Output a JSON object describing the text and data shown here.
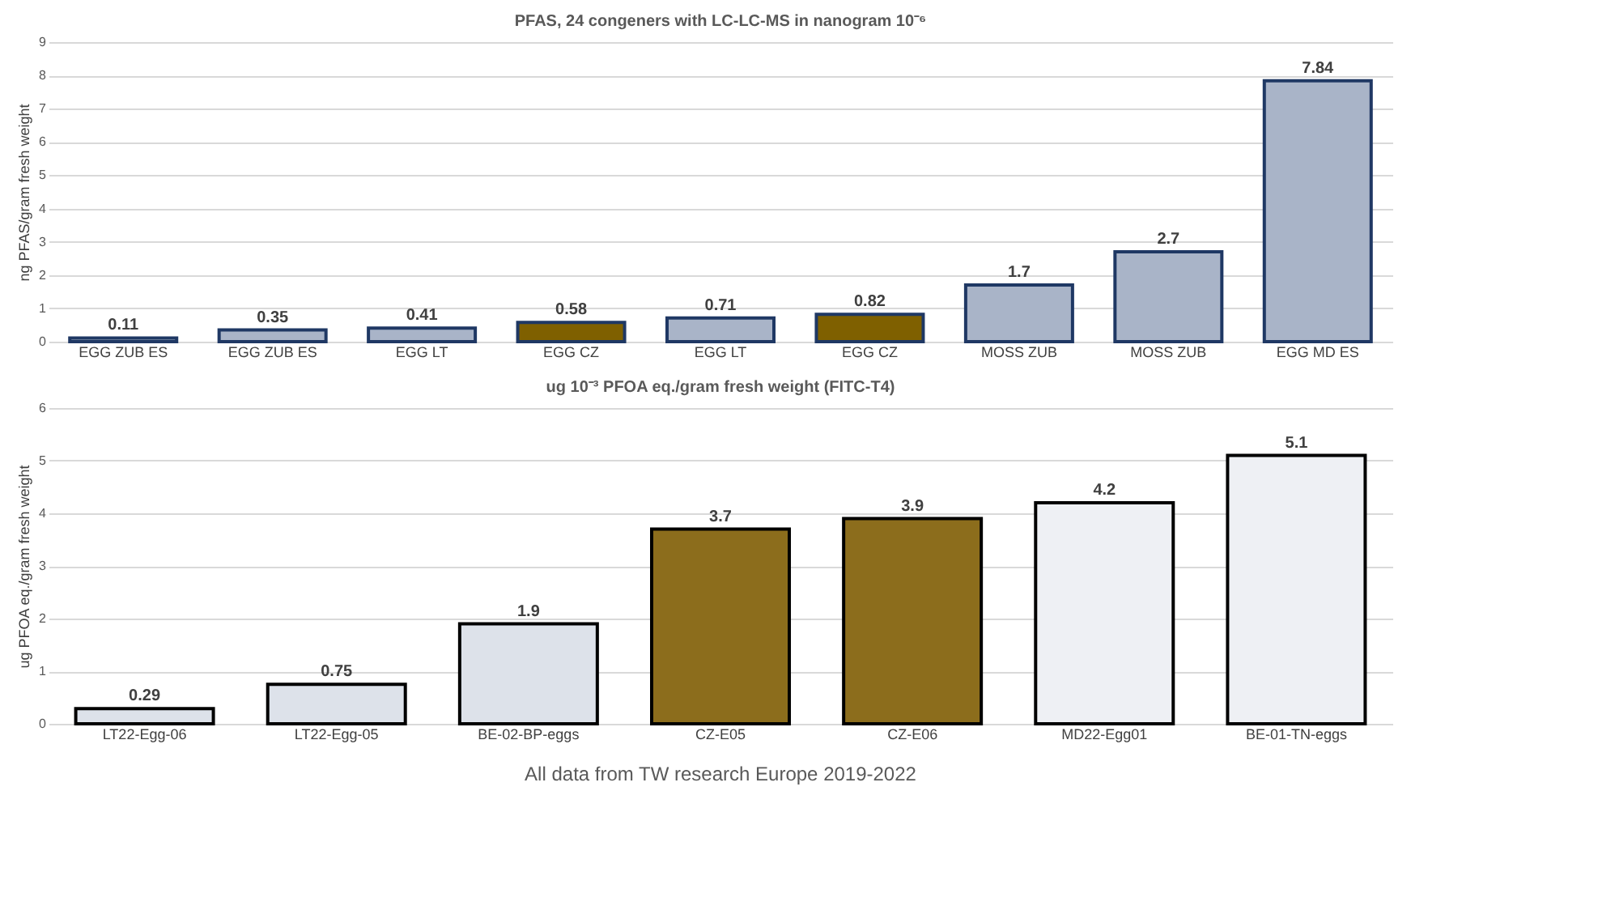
{
  "chart_data": [
    {
      "type": "bar",
      "title": "PFAS, 24 congeners with LC-LC-MS in nanogram 10⁻⁶",
      "ylabel": "ng PFAS/gram fresh weight",
      "categories": [
        "EGG ZUB ES",
        "EGG ZUB ES",
        "EGG LT",
        "EGG CZ",
        "EGG LT",
        "EGG CZ",
        "MOSS ZUB",
        "MOSS ZUB",
        "EGG MD ES"
      ],
      "values": [
        0.11,
        0.35,
        0.41,
        0.58,
        0.71,
        0.82,
        1.7,
        2.7,
        7.84
      ],
      "colors": [
        "#a9b4c8",
        "#a9b4c8",
        "#a9b4c8",
        "#7f6000",
        "#a9b4c8",
        "#7f6000",
        "#a9b4c8",
        "#a9b4c8",
        "#a9b4c8"
      ],
      "ylim": [
        0,
        9
      ],
      "yticks": [
        0,
        1,
        2,
        3,
        4,
        5,
        6,
        7,
        8,
        9
      ],
      "grid": "y",
      "data_labels": true
    },
    {
      "type": "bar",
      "title": "ug 10⁻³ PFOA eq./gram fresh weight (FITC-T4)",
      "ylabel": "ug PFOA eq./gram fresh weight",
      "categories": [
        "LT22-Egg-06",
        "LT22-Egg-05",
        "BE-02-BP-eggs",
        "CZ-E05",
        "CZ-E06",
        "MD22-Egg01",
        "BE-01-TN-eggs"
      ],
      "values": [
        0.29,
        0.75,
        1.9,
        3.7,
        3.9,
        4.2,
        5.1
      ],
      "colors": [
        "#dde2ea",
        "#dde2ea",
        "#dde2ea",
        "#8c6d1c",
        "#8c6d1c",
        "#eef0f4",
        "#eef0f4"
      ],
      "ylim": [
        0,
        6
      ],
      "yticks": [
        0,
        1,
        2,
        3,
        4,
        5,
        6
      ],
      "grid": "y",
      "data_labels": true,
      "annotations": [
        "All data from TW research Europe 2019-2022"
      ]
    }
  ]
}
